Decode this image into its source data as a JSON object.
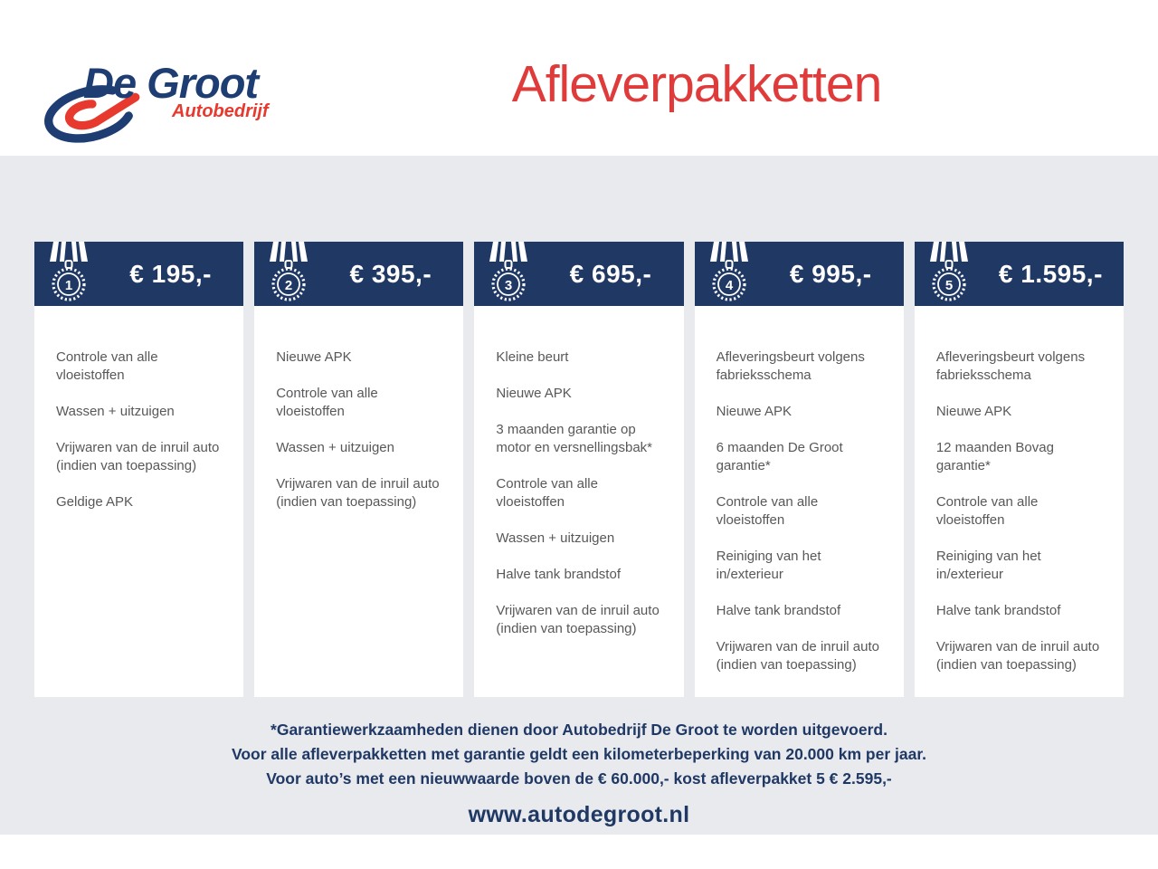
{
  "brand": {
    "name": "De Groot",
    "tagline": "Autobedrijf"
  },
  "page_title": "Afleverpakketten",
  "packages": [
    {
      "number": "1",
      "price": "€ 195,-",
      "items": [
        "Controle van alle vloeistoffen",
        "Wassen + uitzuigen",
        "Vrijwaren van de inruil auto (indien van toepassing)",
        "Geldige APK"
      ]
    },
    {
      "number": "2",
      "price": "€ 395,-",
      "items": [
        "Nieuwe APK",
        "Controle van alle vloeistoffen",
        "Wassen + uitzuigen",
        "Vrijwaren van de inruil auto (indien van toepassing)"
      ]
    },
    {
      "number": "3",
      "price": "€ 695,-",
      "items": [
        "Kleine beurt",
        "Nieuwe APK",
        "3 maanden garantie op motor en versnellingsbak*",
        "Controle van alle vloeistoffen",
        "Wassen + uitzuigen",
        "Halve tank brandstof",
        "Vrijwaren van de inruil auto (indien van toepassing)"
      ]
    },
    {
      "number": "4",
      "price": "€ 995,-",
      "items": [
        "Afleveringsbeurt volgens fabrieksschema",
        "Nieuwe APK",
        "6 maanden De Groot garantie*",
        "Controle van alle vloeistoffen",
        "Reiniging van het in/exterieur",
        "Halve tank brandstof",
        "Vrijwaren van de inruil auto (indien van toepassing)"
      ]
    },
    {
      "number": "5",
      "price": "€ 1.595,-",
      "items": [
        "Afleveringsbeurt volgens fabrieksschema",
        "Nieuwe APK",
        "12 maanden Bovag garantie*",
        "Controle van alle vloeistoffen",
        "Reiniging van het in/exterieur",
        "Halve tank brandstof",
        "Vrijwaren van de inruil auto (indien van toepassing)"
      ]
    }
  ],
  "footnotes": [
    "*Garantiewerkzaamheden dienen door Autobedrijf De Groot te worden uitgevoerd.",
    "Voor alle afleverpakketten met garantie geldt een kilometerbeperking van 20.000 km per jaar.",
    "Voor auto’s met een nieuwwaarde boven de € 60.000,- kost afleverpakket 5 € 2.595,-"
  ],
  "website": "www.autodegroot.nl",
  "colors": {
    "navy": "#1F3864",
    "title_red": "#E03B3B",
    "logo_red": "#E8392E",
    "logo_blue": "#1E3D73",
    "band_gray": "#E9EAEE",
    "body_text": "#58585A"
  }
}
